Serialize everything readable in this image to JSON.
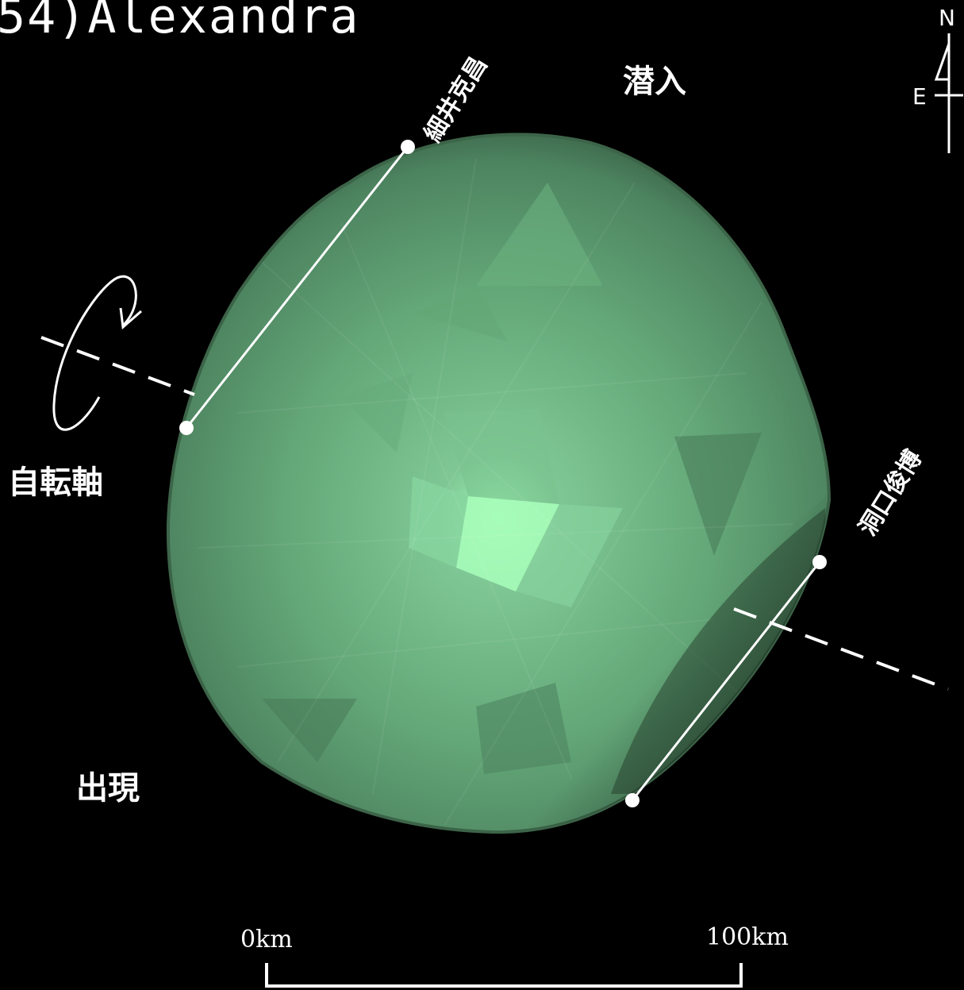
{
  "title": "54)Alexandra",
  "labels": {
    "entry": "潜入",
    "exit": "出現",
    "rotation_axis": "自転軸"
  },
  "observers": [
    {
      "name": "細井克昌"
    },
    {
      "name": "洞口俊博"
    }
  ],
  "compass": {
    "north": "N",
    "east": "E"
  },
  "scale_bar": {
    "start_label": "0km",
    "end_label": "100km"
  },
  "colors": {
    "background": "#000000",
    "body_base": "#5e9a6e",
    "body_highlight": "#a6fcb9",
    "body_shadow": "#2c4a34",
    "lines": "#ffffff"
  },
  "icons": [
    "rotation-arrow-icon",
    "compass-arrow-icon"
  ]
}
